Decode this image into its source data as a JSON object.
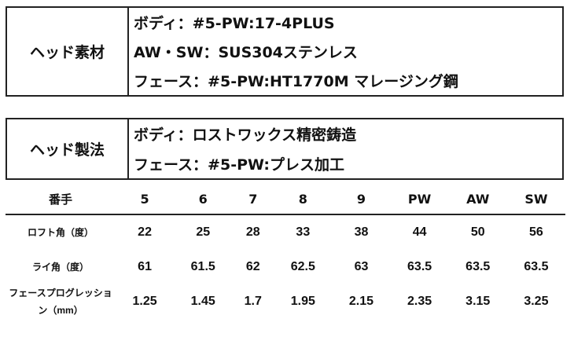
{
  "material": {
    "label": "ヘッド素材",
    "lines": [
      "ボディ：#5-PW:17-4PLUS",
      "AW・SW：SUS304ステンレス",
      "フェース：#5-PW:HT1770M マレージング鋼"
    ]
  },
  "manufacturing": {
    "label": "ヘッド製法",
    "lines": [
      "ボディ：ロストワックス精密鋳造",
      "フェース：#5-PW:プレス加工"
    ]
  },
  "spec_table": {
    "header_label": "番手",
    "columns": [
      "5",
      "6",
      "7",
      "8",
      "9",
      "PW",
      "AW",
      "SW"
    ],
    "rows": [
      {
        "label": "ロフト角（度）",
        "values": [
          "22",
          "25",
          "28",
          "33",
          "38",
          "44",
          "50",
          "56"
        ]
      },
      {
        "label": "ライ角（度）",
        "values": [
          "61",
          "61.5",
          "62",
          "62.5",
          "63",
          "63.5",
          "63.5",
          "63.5"
        ]
      },
      {
        "label": "フェースプログレッション（mm）",
        "values": [
          "1.25",
          "1.45",
          "1.7",
          "1.95",
          "2.15",
          "2.35",
          "3.15",
          "3.25"
        ]
      }
    ]
  }
}
